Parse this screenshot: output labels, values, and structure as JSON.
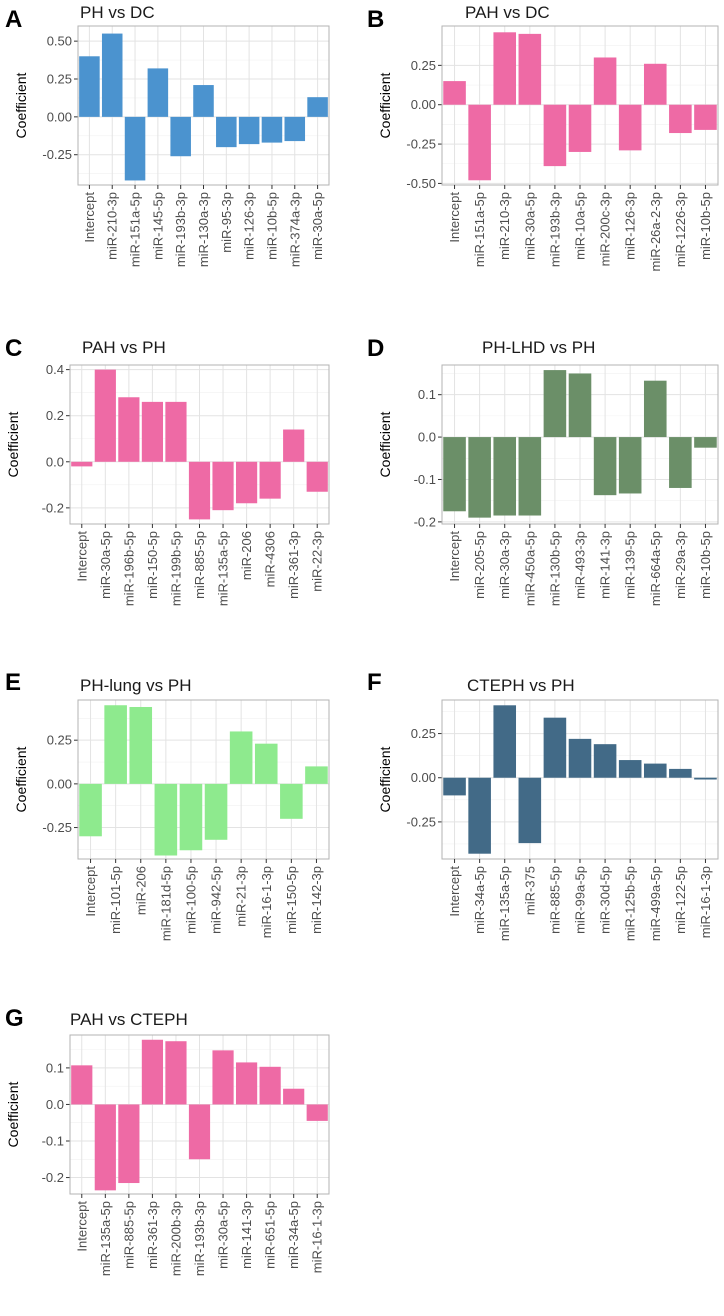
{
  "figure": {
    "ylabel": "Coefficient"
  },
  "colors": {
    "blue": "#4b93cf",
    "pink": "#ee6aa5",
    "darkgreen": "#6b8f68",
    "lightgreen": "#8eea8e",
    "steel": "#426a87"
  },
  "chart_data": [
    {
      "panel": "A",
      "title": "PH vs DC",
      "type": "bar",
      "color": "blue",
      "categories": [
        "Intercept",
        "miR-210-3p",
        "miR-151a-5p",
        "miR-145-5p",
        "miR-193b-3p",
        "miR-130a-3p",
        "miR-95-3p",
        "miR-126-3p",
        "miR-10b-5p",
        "miR-374a-3p",
        "miR-30a-5p"
      ],
      "values": [
        0.4,
        0.55,
        -0.42,
        0.32,
        -0.26,
        0.21,
        -0.2,
        -0.18,
        -0.17,
        -0.16,
        0.13
      ],
      "ylabel": "Coefficient",
      "ylim": [
        -0.45,
        0.6
      ],
      "yticks": [
        -0.25,
        0.0,
        0.25,
        0.5
      ],
      "ytick_labels": [
        "-0.25",
        "0.00",
        "0.25",
        "0.50"
      ]
    },
    {
      "panel": "B",
      "title": "PAH vs DC",
      "type": "bar",
      "color": "pink",
      "categories": [
        "Intercept",
        "miR-151a-5p",
        "miR-210-3p",
        "miR-30a-5p",
        "miR-193b-3p",
        "miR-10a-5p",
        "miR-200c-3p",
        "miR-126-3p",
        "miR-26a-2-3p",
        "miR-1226-3p",
        "miR-10b-5p"
      ],
      "values": [
        0.15,
        -0.48,
        0.46,
        0.45,
        -0.39,
        -0.3,
        0.3,
        -0.29,
        0.26,
        -0.18,
        -0.16
      ],
      "ylabel": "Coefficient",
      "ylim": [
        -0.51,
        0.5
      ],
      "yticks": [
        -0.5,
        -0.25,
        0.0,
        0.25
      ],
      "ytick_labels": [
        "-0.50",
        "-0.25",
        "0.00",
        "0.25"
      ]
    },
    {
      "panel": "C",
      "title": "PAH vs PH",
      "type": "bar",
      "color": "pink",
      "categories": [
        "Intercept",
        "miR-30a-5p",
        "miR-196b-5p",
        "miR-150-5p",
        "miR-199b-5p",
        "miR-885-5p",
        "miR-135a-5p",
        "miR-206",
        "miR-4306",
        "miR-361-3p",
        "miR-22-3p"
      ],
      "values": [
        -0.02,
        0.4,
        0.28,
        0.26,
        0.26,
        -0.25,
        -0.21,
        -0.18,
        -0.16,
        0.14,
        -0.13
      ],
      "ylabel": "Coefficient",
      "ylim": [
        -0.27,
        0.42
      ],
      "yticks": [
        -0.2,
        0.0,
        0.2,
        0.4
      ],
      "ytick_labels": [
        "-0.2",
        "0.0",
        "0.2",
        "0.4"
      ]
    },
    {
      "panel": "D",
      "title": "PH-LHD vs PH",
      "type": "bar",
      "color": "darkgreen",
      "categories": [
        "Intercept",
        "miR-205-5p",
        "miR-30a-3p",
        "miR-450a-5p",
        "miR-130b-5p",
        "miR-493-3p",
        "miR-141-3p",
        "miR-139-5p",
        "miR-664a-5p",
        "miR-29a-3p",
        "miR-10b-5p"
      ],
      "values": [
        -0.175,
        -0.19,
        -0.185,
        -0.185,
        0.158,
        0.15,
        -0.137,
        -0.133,
        0.133,
        -0.12,
        -0.025
      ],
      "ylabel": "Coefficient",
      "ylim": [
        -0.205,
        0.17
      ],
      "yticks": [
        -0.2,
        -0.1,
        0.0,
        0.1
      ],
      "ytick_labels": [
        "-0.2",
        "-0.1",
        "0.0",
        "0.1"
      ]
    },
    {
      "panel": "E",
      "title": "PH-lung vs PH",
      "type": "bar",
      "color": "lightgreen",
      "categories": [
        "Intercept",
        "miR-101-5p",
        "miR-206",
        "miR-181d-5p",
        "miR-100-5p",
        "miR-942-5p",
        "miR-21-3p",
        "miR-16-1-3p",
        "miR-150-5p",
        "miR-142-3p"
      ],
      "values": [
        -0.3,
        0.45,
        0.44,
        -0.41,
        -0.38,
        -0.32,
        0.3,
        0.23,
        -0.2,
        0.1
      ],
      "ylabel": "Coefficient",
      "ylim": [
        -0.43,
        0.48
      ],
      "yticks": [
        -0.25,
        0.0,
        0.25
      ],
      "ytick_labels": [
        "-0.25",
        "0.00",
        "0.25"
      ]
    },
    {
      "panel": "F",
      "title": "CTEPH vs PH",
      "type": "bar",
      "color": "steel",
      "categories": [
        "Intercept",
        "miR-34a-5p",
        "miR-135a-5p",
        "miR-375",
        "miR-885-5p",
        "miR-99a-5p",
        "miR-30d-5p",
        "miR-125b-5p",
        "miR-499a-5p",
        "miR-122-5p",
        "miR-16-1-3p"
      ],
      "values": [
        -0.1,
        -0.43,
        0.41,
        -0.37,
        0.34,
        0.22,
        0.19,
        0.1,
        0.08,
        0.05,
        -0.01
      ],
      "ylabel": "Coefficient",
      "ylim": [
        -0.46,
        0.44
      ],
      "yticks": [
        -0.25,
        0.0,
        0.25
      ],
      "ytick_labels": [
        "-0.25",
        "0.00",
        "0.25"
      ]
    },
    {
      "panel": "G",
      "title": "PAH vs CTEPH",
      "type": "bar",
      "color": "pink",
      "categories": [
        "Intercept",
        "miR-135a-5p",
        "miR-885-5p",
        "miR-361-3p",
        "miR-200b-3p",
        "miR-193b-3p",
        "miR-30a-5p",
        "miR-141-3p",
        "miR-651-5p",
        "miR-34a-5p",
        "miR-16-1-3p"
      ],
      "values": [
        0.107,
        -0.235,
        -0.215,
        0.177,
        0.173,
        -0.15,
        0.148,
        0.115,
        0.103,
        0.043,
        -0.045
      ],
      "ylabel": "Coefficient",
      "ylim": [
        -0.245,
        0.19
      ],
      "yticks": [
        -0.2,
        -0.1,
        0.0,
        0.1
      ],
      "ytick_labels": [
        "-0.2",
        "-0.1",
        "0.0",
        "0.1"
      ]
    }
  ]
}
